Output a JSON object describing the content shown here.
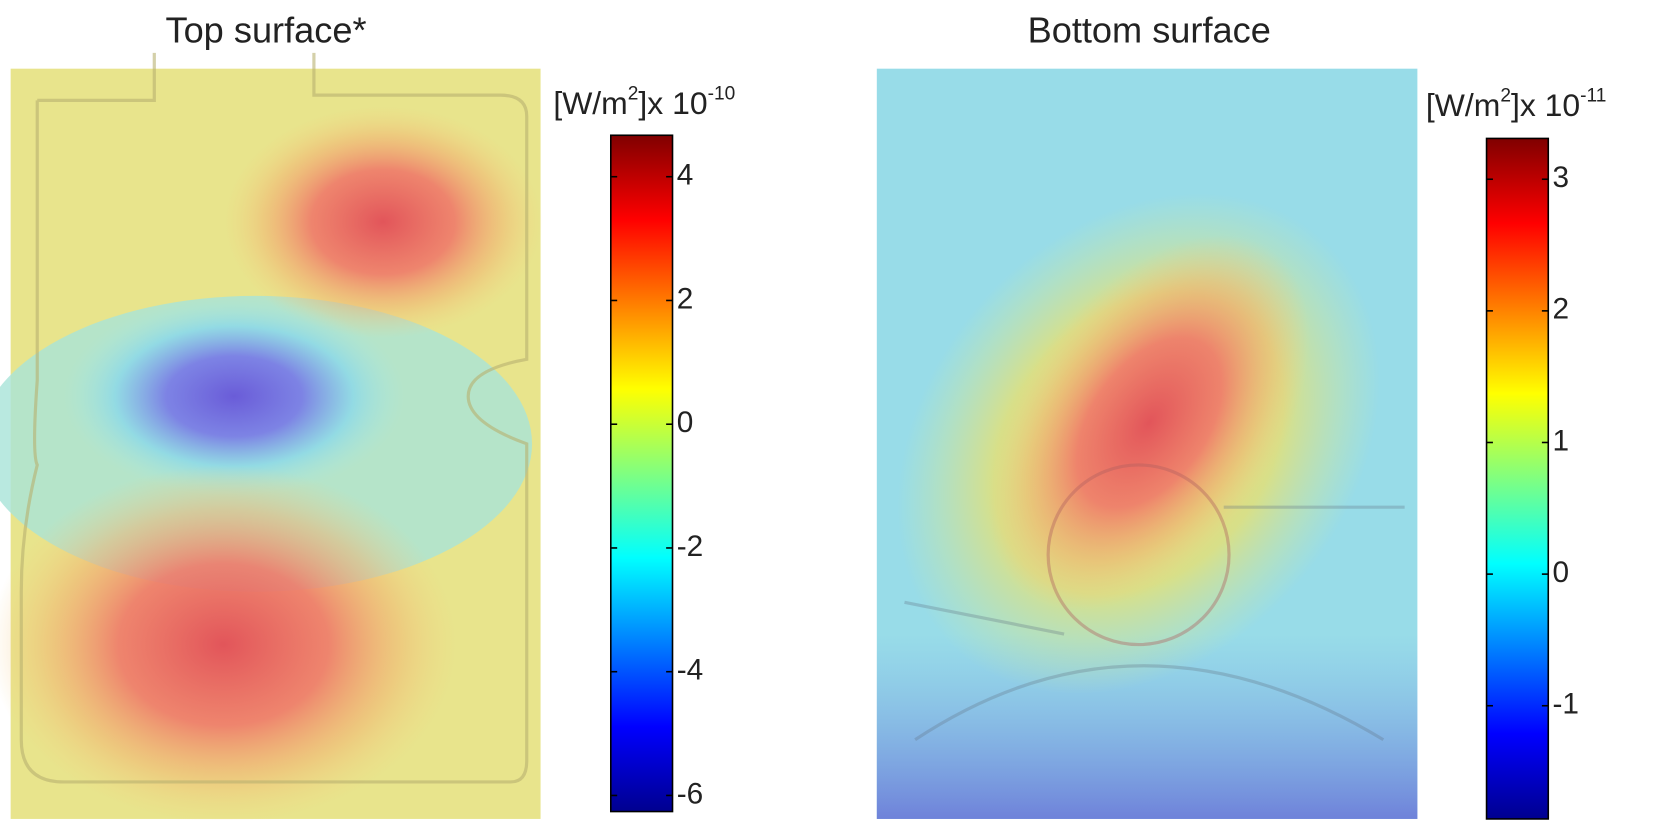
{
  "chart_data": [
    {
      "type": "heatmap",
      "title": "Top surface*",
      "colorbar_label": [
        "[W/m",
        "2",
        "]x 10",
        "-10"
      ],
      "clim": [
        -6.26,
        4.67
      ],
      "cticks": [
        -6,
        -4,
        -2,
        0,
        2,
        4
      ]
    },
    {
      "type": "heatmap",
      "title": "Bottom surface",
      "colorbar_label": [
        "[W/m",
        "2",
        "]x 10",
        "-11"
      ],
      "clim": [
        -1.86,
        3.31
      ],
      "cticks": [
        -1,
        0,
        1,
        2,
        3
      ]
    }
  ]
}
